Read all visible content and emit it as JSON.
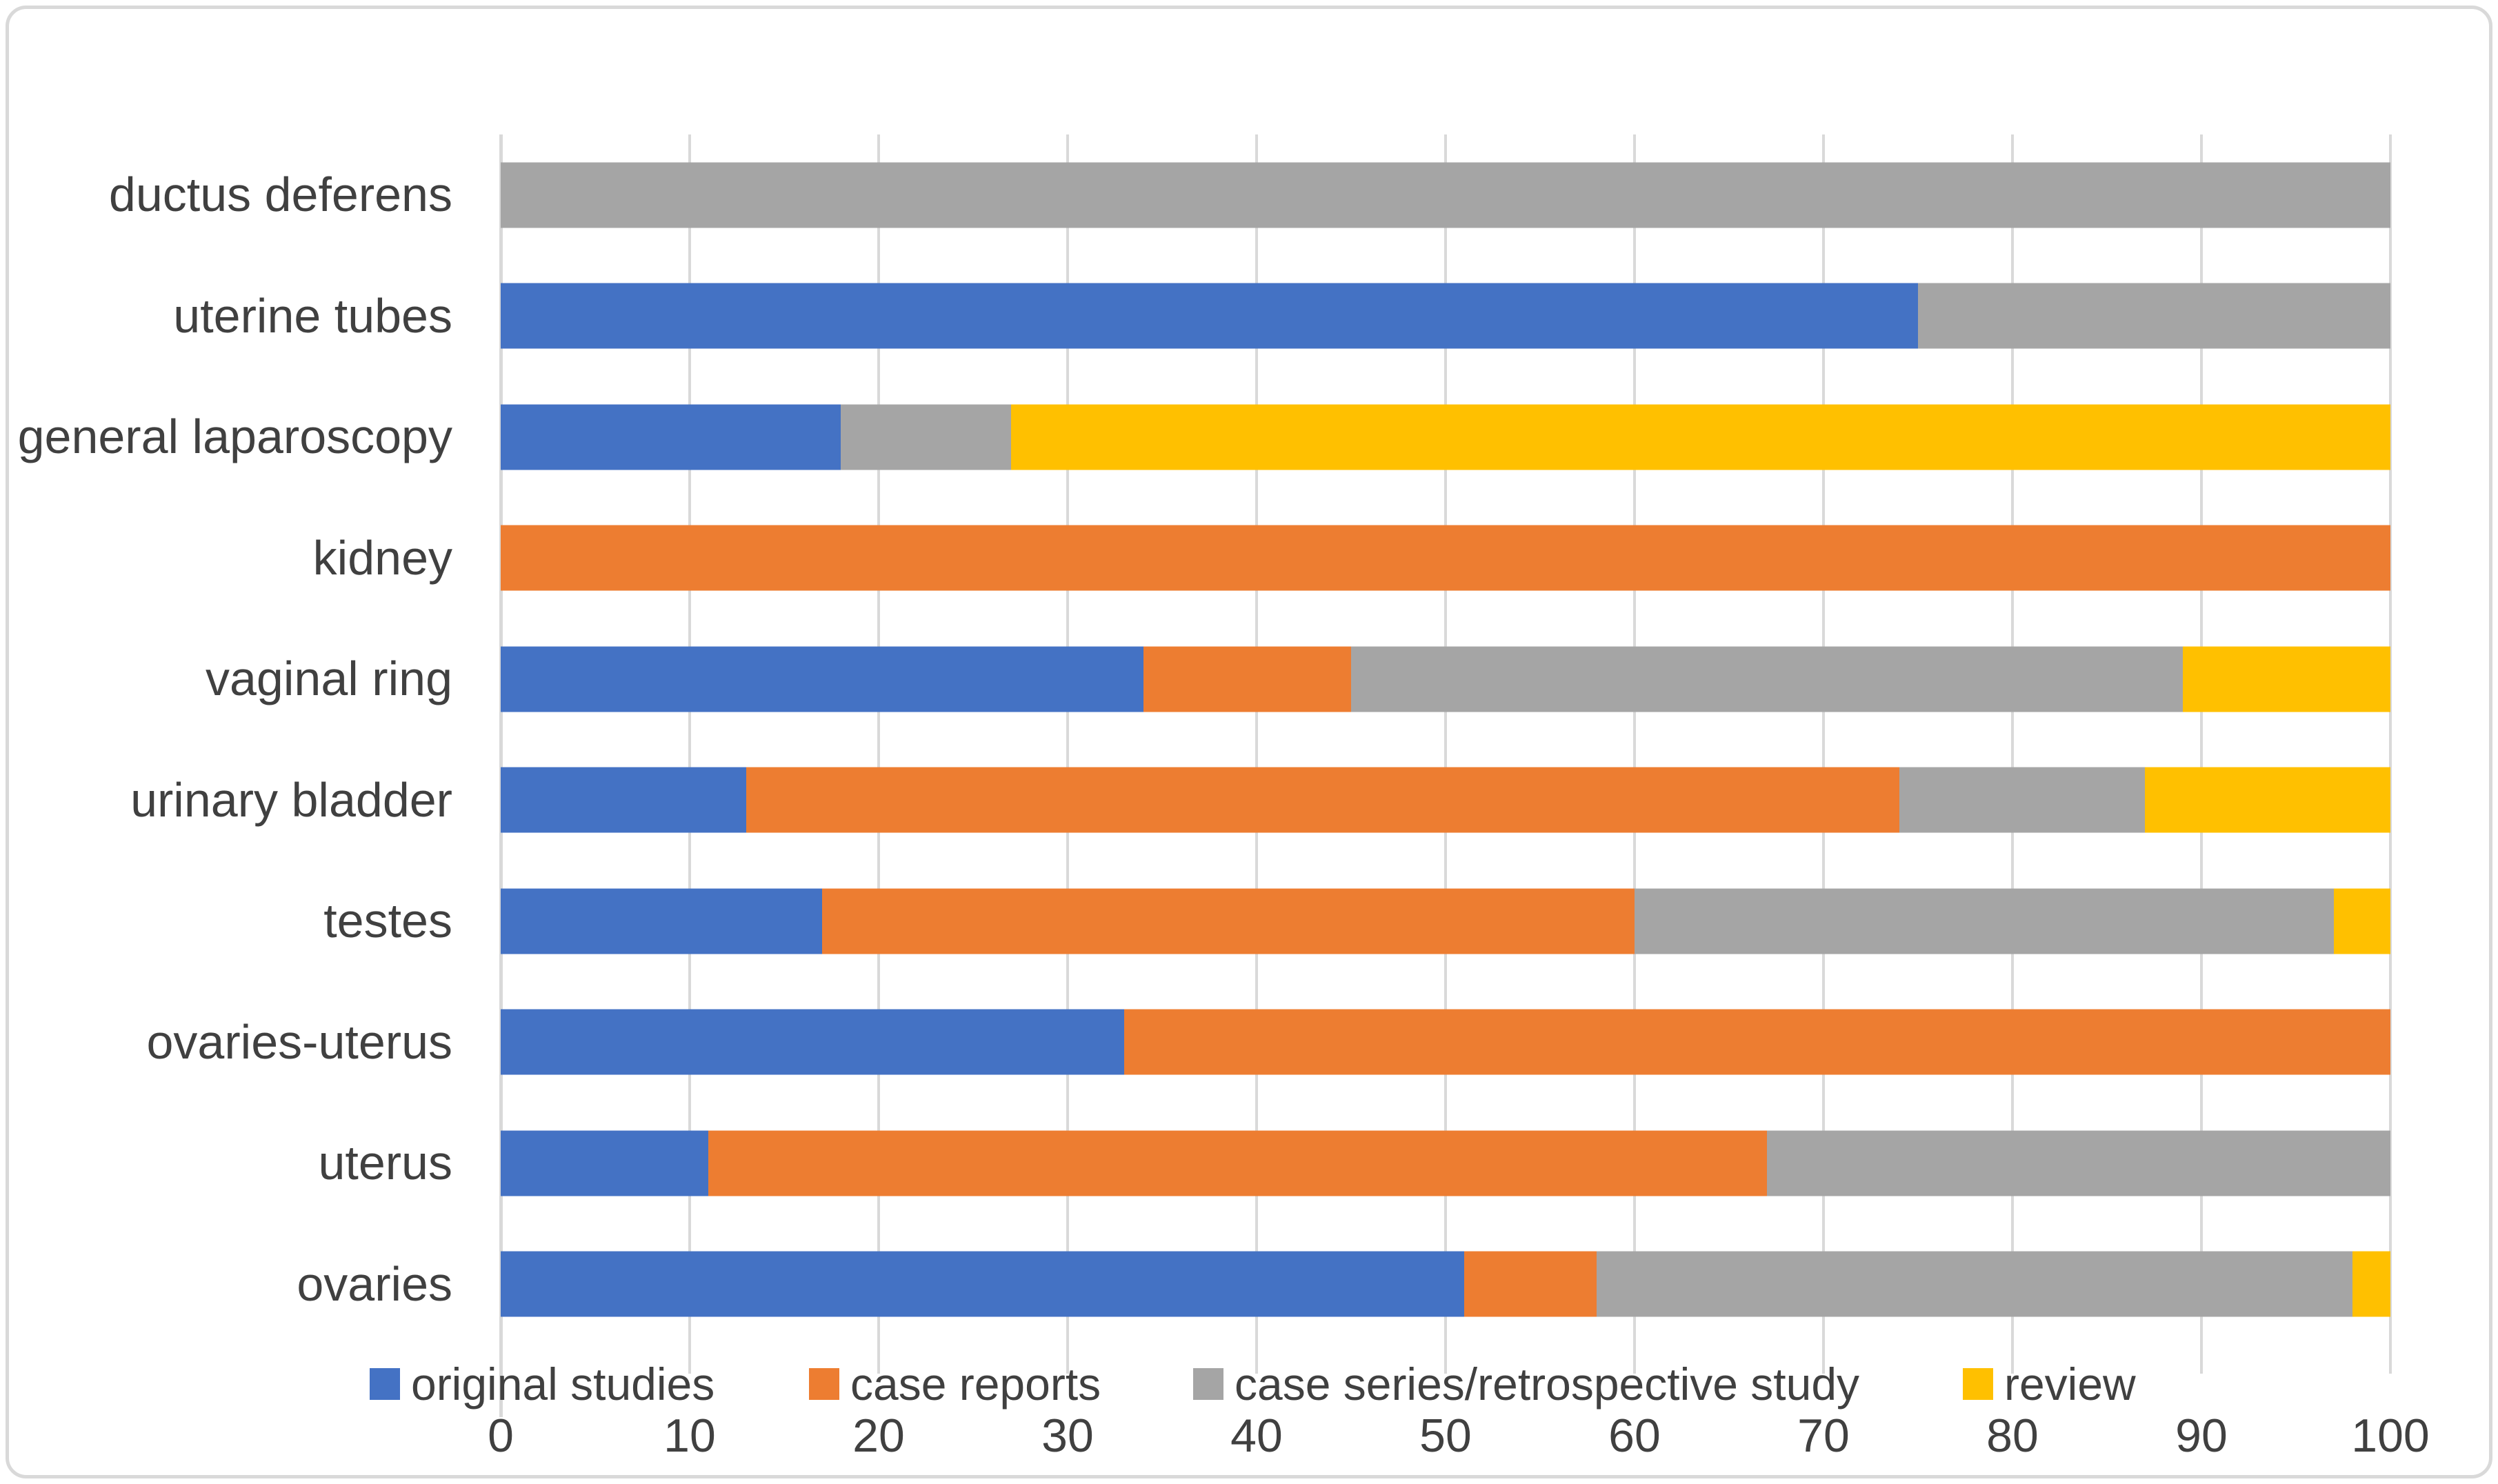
{
  "figure": {
    "background": "#FFFFFF",
    "border_color": "#D9D9D9",
    "gridline_color": "#D9D9D9",
    "text_color": "#404040"
  },
  "chart_data": {
    "type": "bar",
    "orientation": "horizontal",
    "stacked": true,
    "title": "",
    "xlabel": "",
    "ylabel": "",
    "xlim": [
      0,
      100
    ],
    "grid": true,
    "legend_position": "bottom",
    "x_ticks": [
      0,
      10,
      20,
      30,
      40,
      50,
      60,
      70,
      80,
      90,
      100
    ],
    "categories": [
      "ductus deferens",
      "uterine tubes",
      "general laparoscopy",
      "kidney",
      "vaginal ring",
      "urinary bladder",
      "testes",
      "ovaries-uterus",
      "uterus",
      "ovaries"
    ],
    "series": [
      {
        "name": "original studies",
        "color": "#4472C4",
        "values": [
          0,
          75,
          18,
          0,
          34,
          13,
          17,
          33,
          11,
          51
        ]
      },
      {
        "name": "case reports",
        "color": "#ED7D31",
        "values": [
          0,
          0,
          0,
          100,
          11,
          61,
          43,
          67,
          56,
          7
        ]
      },
      {
        "name": "case series/retrospective study",
        "color": "#A5A5A5",
        "values": [
          100,
          25,
          9,
          0,
          44,
          13,
          37,
          0,
          33,
          40
        ]
      },
      {
        "name": "review",
        "color": "#FFC000",
        "values": [
          0,
          0,
          73,
          0,
          11,
          13,
          3,
          0,
          0,
          2
        ]
      }
    ]
  }
}
